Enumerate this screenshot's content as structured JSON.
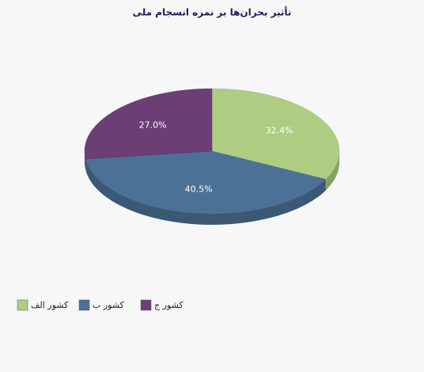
{
  "chart_data": {
    "type": "pie",
    "title": "تأثیر بحران‌ها بر نمره انسجام ملی",
    "categories": [
      "کشور الف",
      "کشور ب",
      "کشور ج"
    ],
    "values": [
      32.4,
      40.5,
      27.0
    ],
    "value_labels": [
      "32.4%",
      "40.5%",
      "27.0%"
    ],
    "colors": [
      "#aecd83",
      "#4b7196",
      "#6b3f76"
    ]
  }
}
